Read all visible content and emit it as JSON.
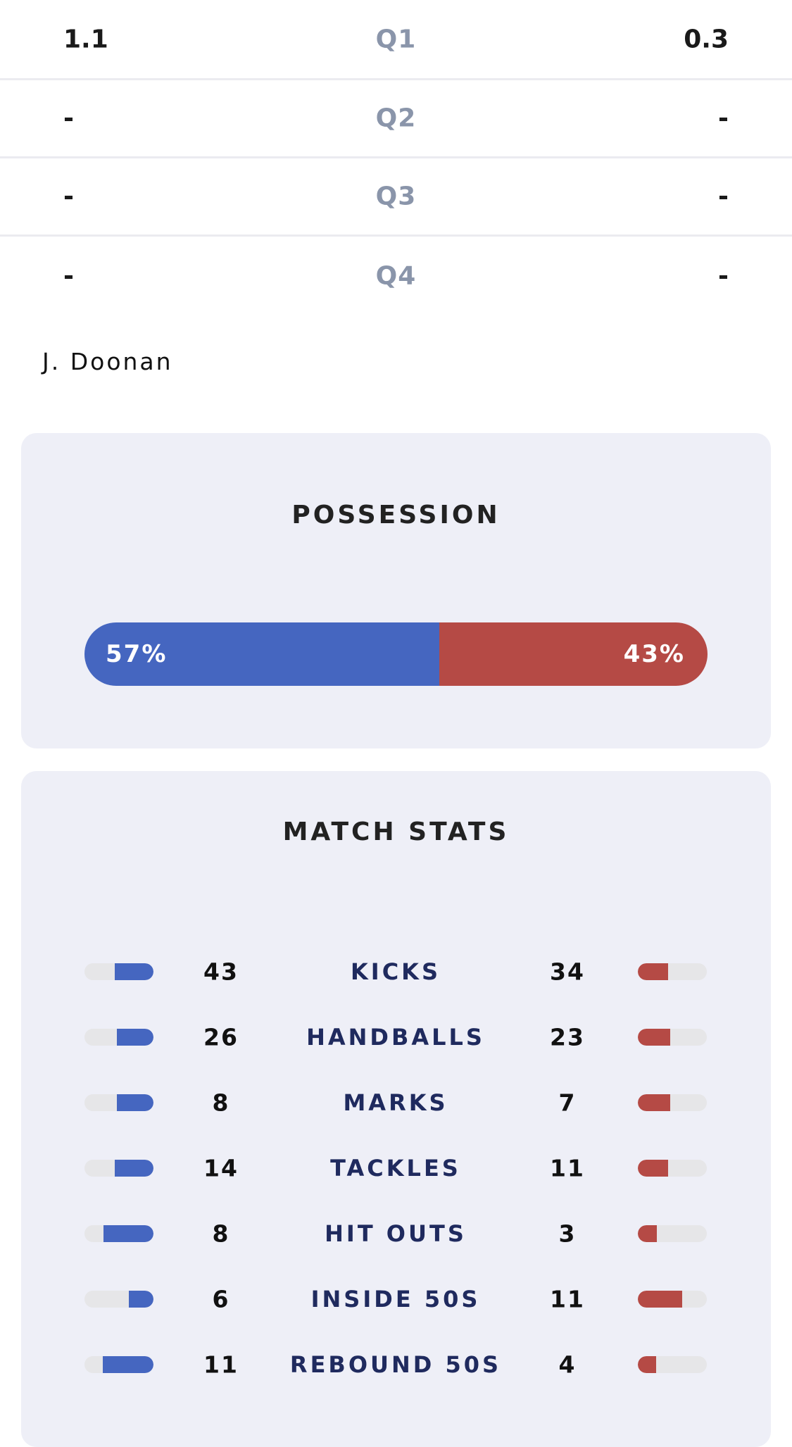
{
  "quarters": [
    {
      "label": "Q1",
      "home": "1.1",
      "away": "0.3"
    },
    {
      "label": "Q2",
      "home": "-",
      "away": "-"
    },
    {
      "label": "Q3",
      "home": "-",
      "away": "-"
    },
    {
      "label": "Q4",
      "home": "-",
      "away": "-"
    }
  ],
  "player": "J. Doonan",
  "possession": {
    "title": "POSSESSION",
    "home_pct": 57,
    "away_pct": 43,
    "home_label": "57%",
    "away_label": "43%"
  },
  "colors": {
    "home": "#4566c0",
    "away": "#b54a45",
    "card_bg": "#eeeff7",
    "label": "#1f2a5e"
  },
  "match_stats": {
    "title": "MATCH STATS",
    "rows": [
      {
        "label": "KICKS",
        "home": 43,
        "away": 34
      },
      {
        "label": "HANDBALLS",
        "home": 26,
        "away": 23
      },
      {
        "label": "MARKS",
        "home": 8,
        "away": 7
      },
      {
        "label": "TACKLES",
        "home": 14,
        "away": 11
      },
      {
        "label": "HIT OUTS",
        "home": 8,
        "away": 3
      },
      {
        "label": "INSIDE 50S",
        "home": 6,
        "away": 11
      },
      {
        "label": "REBOUND 50S",
        "home": 11,
        "away": 4
      }
    ]
  }
}
